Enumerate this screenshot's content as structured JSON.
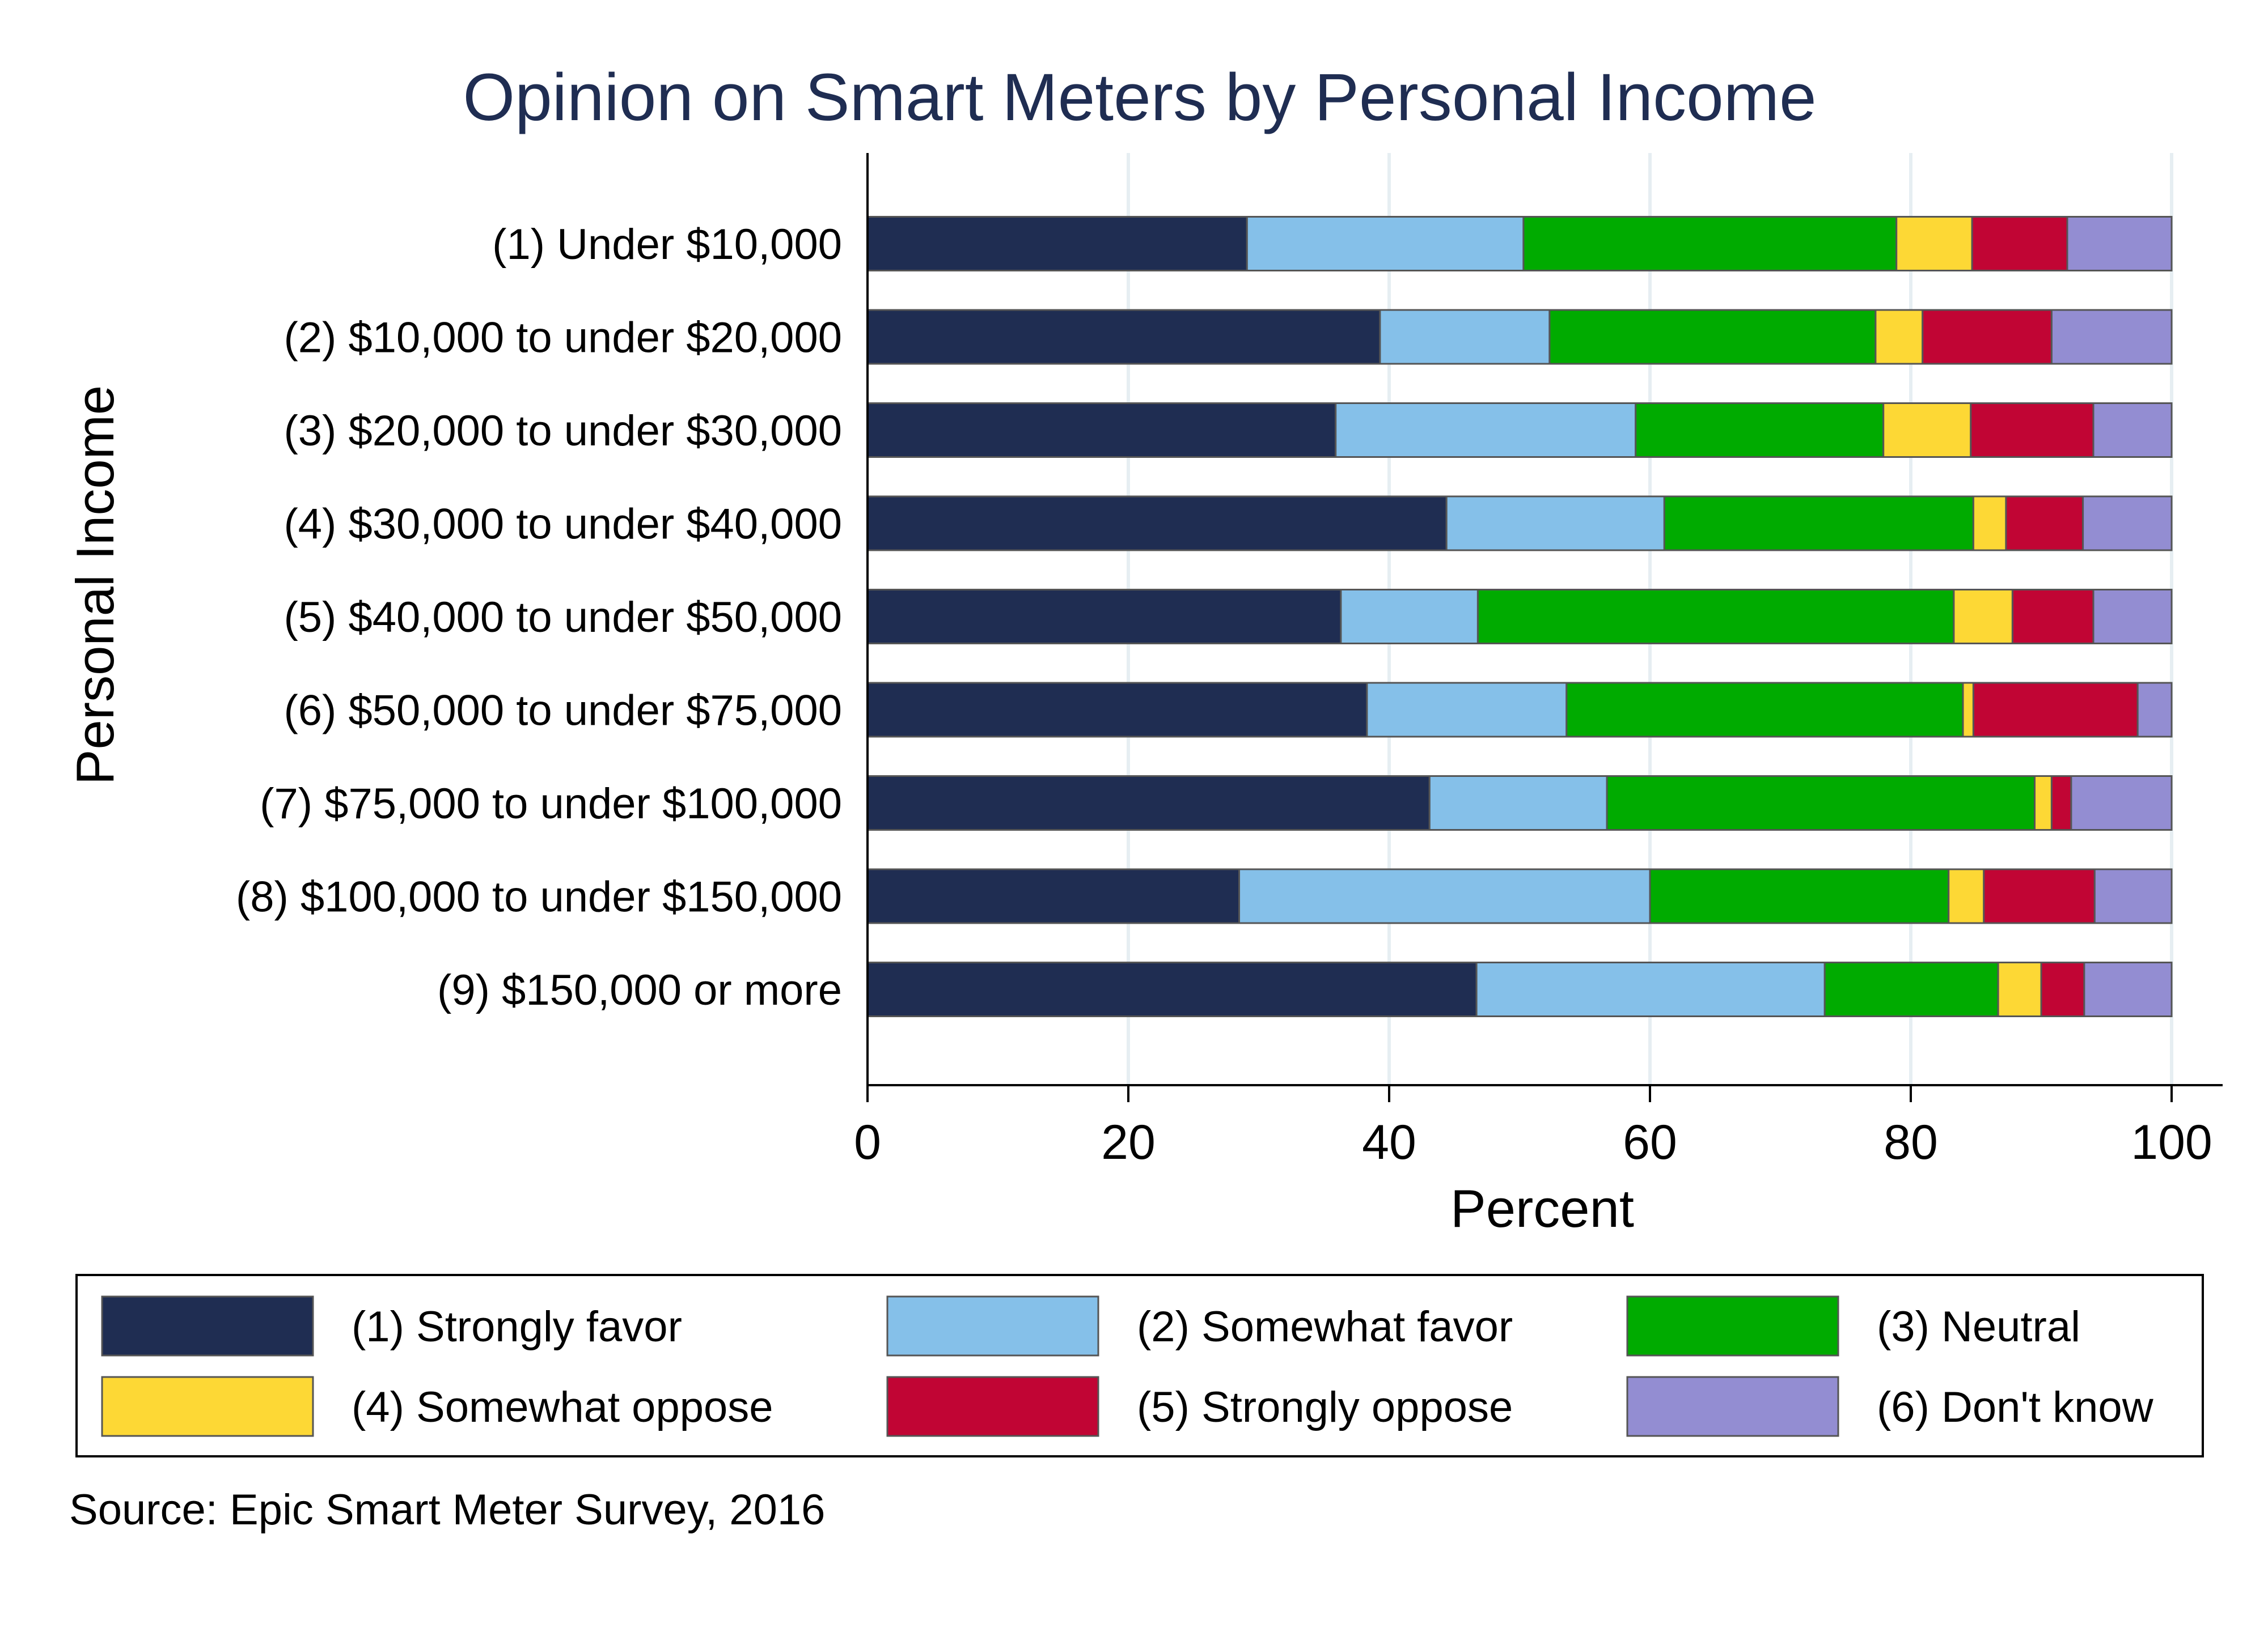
{
  "chart_data": {
    "type": "bar",
    "orientation": "horizontal",
    "stacked": true,
    "title": "Opinion on Smart Meters by Personal Income",
    "xlabel": "Percent",
    "ylabel": "Personal Income",
    "xlim": [
      0,
      100
    ],
    "xticks": [
      "0",
      "20",
      "40",
      "60",
      "80",
      "100"
    ],
    "grid": true,
    "legend_position": "bottom",
    "categories": [
      "(1) Under $10,000",
      "(2) $10,000 to under $20,000",
      "(3) $20,000 to under $30,000",
      "(4) $30,000 to under $40,000",
      "(5) $40,000 to under $50,000",
      "(6) $50,000 to under $75,000",
      "(7) $75,000 to under $100,000",
      "(8) $100,000 to under $150,000",
      "(9) $150,000 or more"
    ],
    "series": [
      {
        "name": "(1) Strongly favor",
        "color": "#1f2d52",
        "values": [
          29.1,
          39.3,
          35.9,
          44.4,
          36.3,
          38.3,
          43.1,
          28.5,
          46.7
        ]
      },
      {
        "name": "(2) Somewhat favor",
        "color": "#85c0e9",
        "values": [
          21.2,
          13.0,
          23.0,
          16.7,
          10.5,
          15.3,
          13.6,
          31.5,
          26.7
        ]
      },
      {
        "name": "(3) Neutral",
        "color": "#00ab00",
        "values": [
          28.6,
          25.0,
          19.0,
          23.7,
          36.5,
          30.4,
          32.8,
          22.9,
          13.3
        ]
      },
      {
        "name": "(4) Somewhat oppose",
        "color": "#fdd835",
        "values": [
          5.8,
          3.6,
          6.7,
          2.5,
          4.5,
          0.8,
          1.3,
          2.7,
          3.3
        ]
      },
      {
        "name": "(5) Strongly oppose",
        "color": "#c10534",
        "values": [
          7.3,
          9.9,
          9.4,
          5.9,
          6.2,
          12.6,
          1.5,
          8.5,
          3.3
        ]
      },
      {
        "name": "(6) Don't know",
        "color": "#938dd2",
        "values": [
          8.0,
          9.2,
          6.0,
          6.8,
          6.0,
          2.6,
          7.7,
          5.9,
          6.7
        ]
      }
    ],
    "source": "Source:  Epic Smart Meter Survey, 2016"
  }
}
